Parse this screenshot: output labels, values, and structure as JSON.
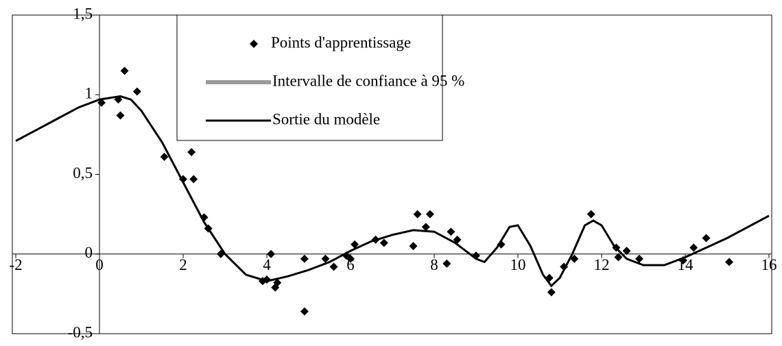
{
  "chart_data": {
    "type": "line",
    "series": [
      {
        "name": "Points d'apprentissage",
        "type": "scatter",
        "color": "#000000",
        "x": [
          0.05,
          0.45,
          0.5,
          0.6,
          0.9,
          1.55,
          2.0,
          2.2,
          2.25,
          2.5,
          2.6,
          2.9,
          3.9,
          4.0,
          4.1,
          4.2,
          4.25,
          4.9,
          4.9,
          5.4,
          5.6,
          5.9,
          6.0,
          6.1,
          6.6,
          6.8,
          7.5,
          7.6,
          7.8,
          7.9,
          8.3,
          8.4,
          8.55,
          9.0,
          9.6,
          10.75,
          10.8,
          11.1,
          11.35,
          11.75,
          12.35,
          12.4,
          12.6,
          12.9,
          13.95,
          14.2,
          14.5,
          15.05
        ],
        "values": [
          0.95,
          0.97,
          0.87,
          1.15,
          1.02,
          0.61,
          0.47,
          0.64,
          0.47,
          0.23,
          0.16,
          0.0,
          -0.17,
          -0.16,
          0.0,
          -0.21,
          -0.18,
          -0.03,
          -0.36,
          -0.03,
          -0.08,
          -0.01,
          -0.03,
          0.06,
          0.09,
          0.07,
          0.05,
          0.25,
          0.17,
          0.25,
          -0.06,
          0.14,
          0.09,
          -0.01,
          0.06,
          -0.15,
          -0.24,
          -0.08,
          -0.03,
          0.25,
          0.04,
          -0.02,
          0.02,
          -0.03,
          -0.04,
          0.04,
          0.1,
          -0.05
        ]
      },
      {
        "name": "Intervalle de confiance à 95 %",
        "type": "band",
        "color": "#9a9a9a"
      },
      {
        "name": "Sortie du modèle",
        "type": "line",
        "color": "#000000",
        "x": [
          -2,
          -1.5,
          -1,
          -0.5,
          0,
          0.5,
          0.75,
          1,
          1.5,
          2,
          2.5,
          3,
          3.5,
          4,
          4.5,
          5,
          5.5,
          6,
          6.5,
          7,
          7.5,
          8,
          8.5,
          9,
          9.2,
          9.5,
          9.8,
          10,
          10.3,
          10.6,
          10.8,
          11,
          11.3,
          11.6,
          11.8,
          12,
          12.3,
          12.6,
          13,
          13.5,
          14,
          14.5,
          15,
          15.5,
          16
        ],
        "values": [
          0.71,
          0.78,
          0.85,
          0.92,
          0.97,
          0.99,
          0.97,
          0.9,
          0.7,
          0.45,
          0.2,
          0.0,
          -0.13,
          -0.17,
          -0.14,
          -0.1,
          -0.05,
          0.02,
          0.08,
          0.12,
          0.15,
          0.14,
          0.07,
          -0.03,
          -0.05,
          0.04,
          0.17,
          0.18,
          0.05,
          -0.13,
          -0.2,
          -0.15,
          0.0,
          0.18,
          0.21,
          0.18,
          0.05,
          -0.03,
          -0.07,
          -0.07,
          -0.02,
          0.04,
          0.1,
          0.17,
          0.24
        ]
      }
    ],
    "xlim": [
      -2,
      16
    ],
    "xticks": [
      -2,
      0,
      2,
      4,
      6,
      8,
      10,
      12,
      14,
      16
    ],
    "ylim": [
      -0.5,
      1.5
    ],
    "yticks": [
      {
        "value": -0.5,
        "label": "-0,5"
      },
      0,
      {
        "value": 0.5,
        "label": "0,5"
      },
      1,
      {
        "value": 1.5,
        "label": "1,5"
      }
    ]
  }
}
